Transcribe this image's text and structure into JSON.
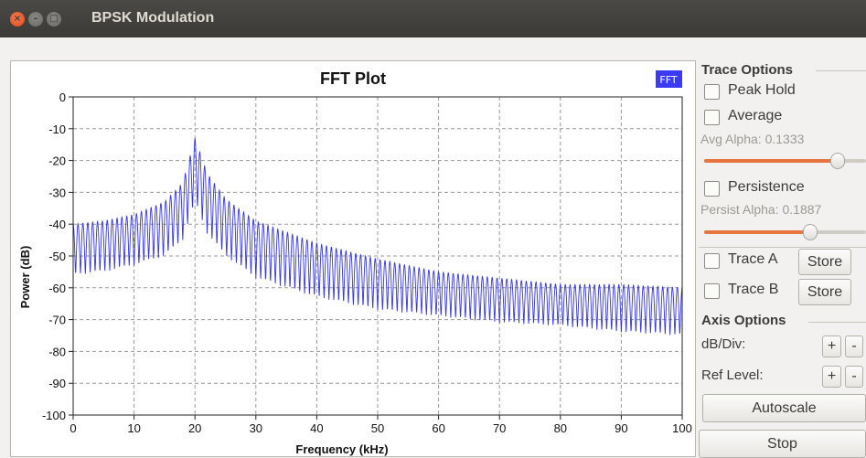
{
  "window": {
    "title": "BPSK Modulation"
  },
  "plot": {
    "title": "FFT Plot",
    "legend_label": "FFT",
    "legend_color": "#3b3bf5",
    "line_color": "#3535e8",
    "xlabel": "Frequency (kHz)",
    "ylabel": "Power (dB)"
  },
  "trace_options": {
    "title": "Trace Options",
    "peak_hold": "Peak Hold",
    "average": "Average",
    "avg_alpha_label": "Avg Alpha: 0.1333",
    "avg_alpha_value": 0.86,
    "persistence": "Persistence",
    "persist_alpha_label": "Persist Alpha: 0.1887",
    "persist_alpha_value": 0.67,
    "trace_a": "Trace A",
    "trace_b": "Trace B",
    "store": "Store"
  },
  "axis_options": {
    "title": "Axis Options",
    "db_div": "dB/Div:",
    "ref_level": "Ref Level:",
    "plus": "+",
    "minus": "-",
    "autoscale": "Autoscale"
  },
  "stop_button": "Stop",
  "colors": {
    "accent": "#e8753e",
    "close_button": "#df4a16"
  },
  "chart_data": {
    "type": "line",
    "title": "FFT Plot",
    "xlabel": "Frequency (kHz)",
    "ylabel": "Power (dB)",
    "xlim": [
      0,
      100
    ],
    "ylim": [
      -100,
      0
    ],
    "xticks": [
      0,
      10,
      20,
      30,
      40,
      50,
      60,
      70,
      80,
      90,
      100
    ],
    "yticks": [
      0,
      -10,
      -20,
      -30,
      -40,
      -50,
      -60,
      -70,
      -80,
      -90,
      -100
    ],
    "grid": true,
    "legend": "top-right",
    "series": [
      {
        "name": "FFT",
        "x": [
          0,
          5,
          10,
          15,
          18,
          20,
          22,
          25,
          30,
          40,
          50,
          60,
          70,
          80,
          90,
          100
        ],
        "y_upper": [
          -40,
          -39,
          -37,
          -33,
          -27,
          -13,
          -24,
          -32,
          -39,
          -46,
          -51,
          -55,
          -57,
          -59,
          -59,
          -60
        ],
        "y_lower": [
          -56,
          -55,
          -53,
          -50,
          -45,
          -33,
          -43,
          -50,
          -57,
          -63,
          -67,
          -69,
          -71,
          -72,
          -74,
          -75
        ]
      }
    ]
  }
}
